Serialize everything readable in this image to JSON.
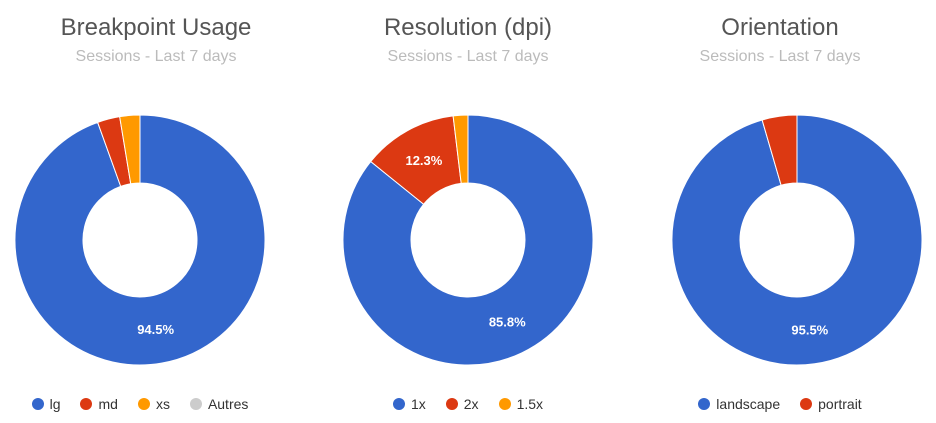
{
  "chart_data": [
    {
      "type": "pie",
      "title": "Breakpoint Usage",
      "subtitle": "Sessions - Last 7 days",
      "donut": true,
      "legend_position": "bottom",
      "series": [
        {
          "name": "lg",
          "value": 94.5,
          "color": "#3366cc",
          "label": "94.5%"
        },
        {
          "name": "md",
          "value": 2.9,
          "color": "#dc3912",
          "label": ""
        },
        {
          "name": "xs",
          "value": 2.6,
          "color": "#ff9900",
          "label": ""
        },
        {
          "name": "Autres",
          "value": 0,
          "color": "#cccccc",
          "label": ""
        }
      ]
    },
    {
      "type": "pie",
      "title": "Resolution (dpi)",
      "subtitle": "Sessions - Last 7 days",
      "donut": true,
      "legend_position": "bottom",
      "series": [
        {
          "name": "1x",
          "value": 85.8,
          "color": "#3366cc",
          "label": "85.8%"
        },
        {
          "name": "2x",
          "value": 12.3,
          "color": "#dc3912",
          "label": "12.3%"
        },
        {
          "name": "1.5x",
          "value": 1.9,
          "color": "#ff9900",
          "label": ""
        }
      ]
    },
    {
      "type": "pie",
      "title": "Orientation",
      "subtitle": "Sessions - Last 7 days",
      "donut": true,
      "legend_position": "bottom",
      "series": [
        {
          "name": "landscape",
          "value": 95.5,
          "color": "#3366cc",
          "label": "95.5%"
        },
        {
          "name": "portrait",
          "value": 4.5,
          "color": "#dc3912",
          "label": ""
        }
      ]
    }
  ]
}
